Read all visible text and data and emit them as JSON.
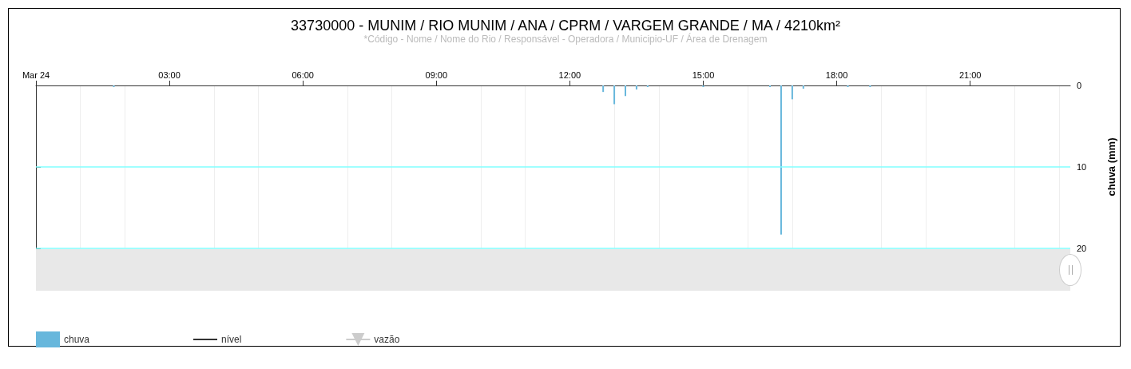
{
  "chart_data": {
    "type": "bar",
    "title": "33730000 - MUNIM / RIO MUNIM / ANA / CPRM / VARGEM GRANDE / MA / 4210km²",
    "subtitle": "*Código - Nome / Nome do Rio / Responsável - Operadora / Municipio-UF / Área de Drenagem",
    "ylabel": "chuva (mm)",
    "series": [
      {
        "name": "chuva",
        "color": "#67b7dc",
        "x": [
          1.75,
          12.75,
          13,
          13.25,
          13.5,
          13.75,
          15,
          16.5,
          16.75,
          17,
          17.25,
          18.25,
          18.75
        ],
        "values": [
          0.2,
          0.8,
          2.3,
          1.3,
          0.5,
          0.2,
          0.2,
          0.2,
          18.3,
          1.7,
          0.4,
          0.2,
          0.2
        ]
      },
      {
        "name": "nível",
        "type": "line",
        "color": "#333333"
      },
      {
        "name": "vazão",
        "type": "line",
        "color": "#cccccc",
        "marker": "triangle"
      }
    ],
    "xlim": [
      0,
      23.25
    ],
    "xticks": [
      {
        "value": 0,
        "label": "Mar 24"
      },
      {
        "value": 3,
        "label": "03:00"
      },
      {
        "value": 6,
        "label": "06:00"
      },
      {
        "value": 9,
        "label": "09:00"
      },
      {
        "value": 12,
        "label": "12:00"
      },
      {
        "value": 15,
        "label": "15:00"
      },
      {
        "value": 18,
        "label": "18:00"
      },
      {
        "value": 21,
        "label": "21:00"
      }
    ],
    "ylim": [
      20,
      0
    ],
    "yticks": [
      0,
      10,
      20
    ],
    "grid": "x",
    "ref_lines": [
      {
        "axis": "y",
        "value": 10,
        "color": "#80ffff"
      },
      {
        "axis": "y",
        "value": 20,
        "color": "#80ffff"
      }
    ],
    "legend": "bottom left"
  }
}
